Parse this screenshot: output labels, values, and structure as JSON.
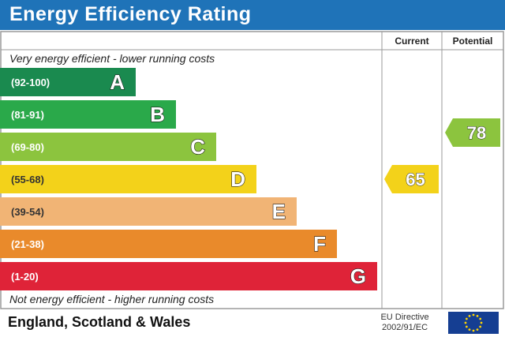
{
  "header": {
    "title": "Energy Efficiency Rating"
  },
  "columns": {
    "current": "Current",
    "potential": "Potential"
  },
  "notes": {
    "top": "Very energy efficient - lower running costs",
    "bottom": "Not energy efficient - higher running costs"
  },
  "footer": {
    "country": "England, Scotland & Wales",
    "directive_line1": "EU Directive",
    "directive_line2": "2002/91/EC"
  },
  "colors": {
    "title_bar": "#1f73b8",
    "eu_flag": "#153e92",
    "eu_stars": "#ffd500"
  },
  "chart_data": {
    "type": "bar",
    "title": "Energy Efficiency Rating",
    "categories": [
      "A",
      "B",
      "C",
      "D",
      "E",
      "F",
      "G"
    ],
    "bands": [
      {
        "letter": "A",
        "range": "(92-100)",
        "color": "#1a8a4f"
      },
      {
        "letter": "B",
        "range": "(81-91)",
        "color": "#2aa94a"
      },
      {
        "letter": "C",
        "range": "(69-80)",
        "color": "#8cc43e"
      },
      {
        "letter": "D",
        "range": "(55-68)",
        "color": "#f3d21a"
      },
      {
        "letter": "E",
        "range": "(39-54)",
        "color": "#f1b475"
      },
      {
        "letter": "F",
        "range": "(21-38)",
        "color": "#e98a2b"
      },
      {
        "letter": "G",
        "range": "(1-20)",
        "color": "#df2338"
      }
    ],
    "current": {
      "value": 65,
      "band": "D",
      "color": "#f3d21a"
    },
    "potential": {
      "value": 78,
      "band": "C",
      "color": "#8cc43e"
    }
  }
}
